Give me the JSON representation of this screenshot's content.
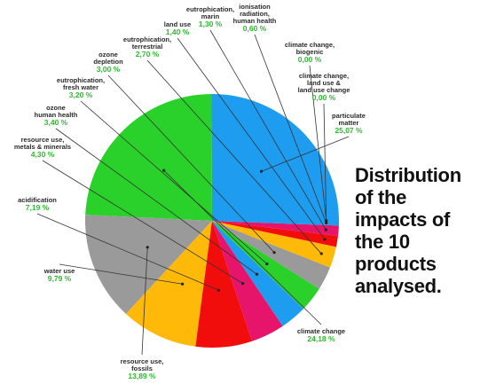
{
  "headline": [
    "Distribution",
    "of the",
    "impacts of",
    "the 10",
    "products",
    "analysed."
  ],
  "chart_data": {
    "type": "pie",
    "title": "Distribution of the impacts of the 10 products analysed.",
    "unit": "%",
    "slices": [
      {
        "name": [
          "particulate",
          "matter"
        ],
        "value": 25.07,
        "label": "25,07 %",
        "color": "#1e9cf0"
      },
      {
        "name": [
          "climate change"
        ],
        "value": 24.18,
        "label": "24,18 %",
        "color": "#2bd12b"
      },
      {
        "name": [
          "resource use,",
          "fossils"
        ],
        "value": 13.89,
        "label": "13,89 %",
        "color": "#9a9a9a"
      },
      {
        "name": [
          "water use"
        ],
        "value": 9.79,
        "label": "9,79 %",
        "color": "#ffb908"
      },
      {
        "name": [
          "acidification"
        ],
        "value": 7.19,
        "label": "7,19 %",
        "color": "#f20d0d"
      },
      {
        "name": [
          "resource use,",
          "metals & minerals"
        ],
        "value": 4.3,
        "label": "4,30 %",
        "color": "#e6156b"
      },
      {
        "name": [
          "ozone",
          "human health"
        ],
        "value": 3.4,
        "label": "3,40 %",
        "color": "#1e9cf0"
      },
      {
        "name": [
          "eutrophication,",
          "fresh water"
        ],
        "value": 3.2,
        "label": "3,20 %",
        "color": "#2bd12b"
      },
      {
        "name": [
          "ozone",
          "depletion"
        ],
        "value": 3.0,
        "label": "3,00 %",
        "color": "#9a9a9a"
      },
      {
        "name": [
          "eutrophication,",
          "terrestrial"
        ],
        "value": 2.7,
        "label": "2,70 %",
        "color": "#ffb908"
      },
      {
        "name": [
          "land use"
        ],
        "value": 1.4,
        "label": "1,40 %",
        "color": "#f20d0d"
      },
      {
        "name": [
          "eutrophication,",
          "marin"
        ],
        "value": 1.3,
        "label": "1,30 %",
        "color": "#e6156b"
      },
      {
        "name": [
          "ionisation",
          "radiation,",
          "human health"
        ],
        "value": 0.6,
        "label": "0,60 %",
        "color": "#1e9cf0"
      },
      {
        "name": [
          "climate change,",
          "biogenic"
        ],
        "value": 0.0,
        "label": "0,00 %",
        "color": "#2bd12b"
      },
      {
        "name": [
          "climate change,",
          "land use &",
          "land use change"
        ],
        "value": 0.0,
        "label": "0,00 %",
        "color": "#9a9a9a"
      }
    ]
  }
}
